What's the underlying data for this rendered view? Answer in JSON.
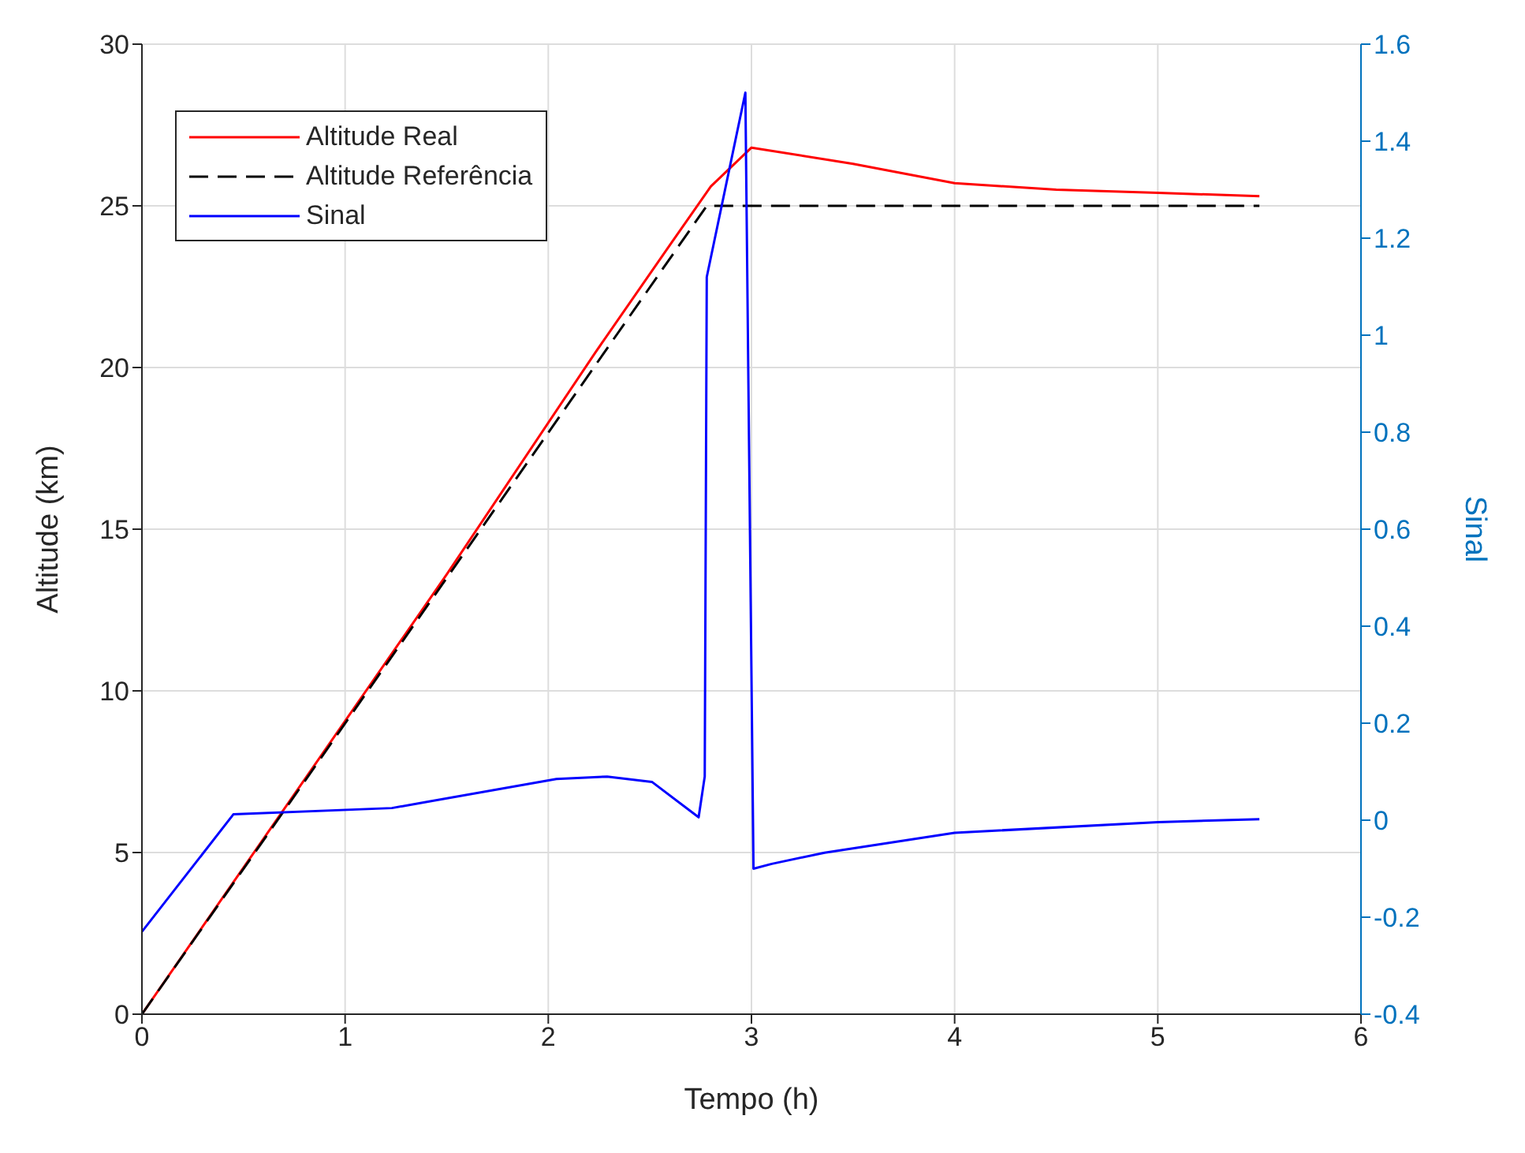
{
  "chart_data": {
    "type": "line",
    "xlabel": "Tempo (h)",
    "ylabel": "Altitude (km)",
    "y2label": "Sinal",
    "xlim": [
      0,
      6
    ],
    "xticks": [
      0,
      1,
      2,
      3,
      4,
      5,
      6
    ],
    "ylim": [
      0,
      30
    ],
    "yticks": [
      0,
      5,
      10,
      15,
      20,
      25,
      30
    ],
    "y2lim": [
      -0.4,
      1.6
    ],
    "y2ticks": [
      -0.4,
      -0.2,
      0,
      0.2,
      0.4,
      0.6,
      0.8,
      1,
      1.2,
      1.4,
      1.6
    ],
    "grid": true,
    "legend": "top left",
    "marker": "none",
    "series": [
      {
        "name": "Altitude Real",
        "color": "#ff0000",
        "line_style": "solid",
        "x": [
          0,
          1.5,
          2.23,
          2.6,
          2.8,
          3.0,
          3.5,
          4,
          4.5,
          5,
          5.5
        ],
        "values": [
          0,
          13.6,
          20.45,
          23.8,
          25.6,
          26.8,
          26.3,
          25.7,
          25.5,
          25.4,
          25.3
        ]
      },
      {
        "name": "Altitude Referência",
        "color": "#000000",
        "line_style": "dashed",
        "x": [
          0,
          2.78,
          5.5
        ],
        "values": [
          0,
          25,
          25
        ]
      },
      {
        "name": "Sinal",
        "color": "#0000ff",
        "line_style": "solid",
        "axis": "y2",
        "x": [
          0,
          0.45,
          1.23,
          2.04,
          2.29,
          2.51,
          2.74,
          2.77,
          2.78,
          2.97,
          3.01,
          3.1,
          3.36,
          4,
          5,
          5.5
        ],
        "values": [
          -0.23,
          0.012,
          0.025,
          0.085,
          0.09,
          0.079,
          0.006,
          0.09,
          1.12,
          1.5,
          -0.1,
          -0.09,
          -0.067,
          -0.026,
          -0.004,
          0.002
        ]
      }
    ]
  }
}
